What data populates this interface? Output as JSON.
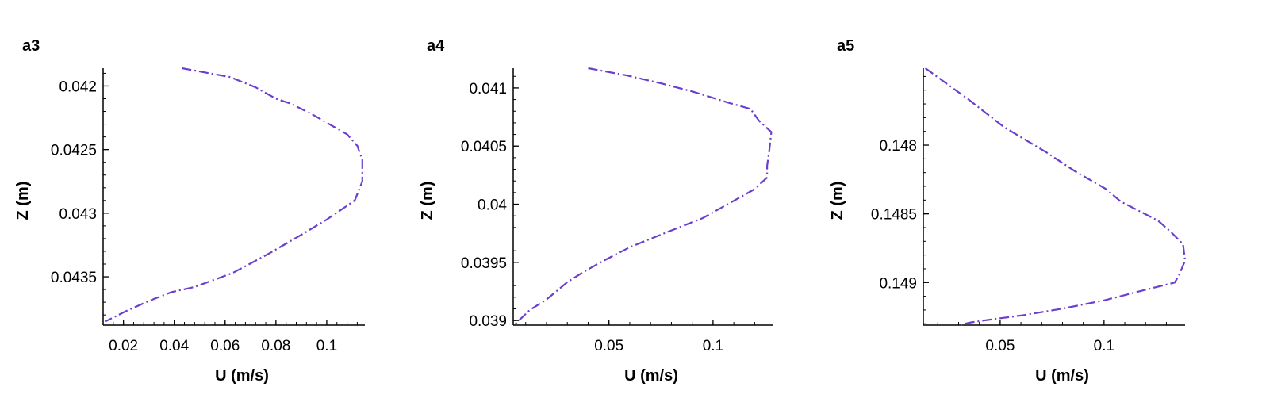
{
  "chart_data": [
    {
      "type": "line",
      "title": "a3",
      "xlabel": "U (m/s)",
      "ylabel": "Z (m)",
      "xlim": [
        0.012,
        0.115
      ],
      "ylim": [
        0.04388,
        0.04186
      ],
      "xticks": [
        0.02,
        0.04,
        0.06,
        0.08,
        0.1
      ],
      "xtick_labels": [
        "0.02",
        "0.04",
        "0.06",
        "0.08",
        "0.1"
      ],
      "yticks": [
        0.042,
        0.0425,
        0.043,
        0.0435
      ],
      "ytick_labels": [
        "0.042",
        "0.0425",
        "0.043",
        "0.0435"
      ],
      "grid": false,
      "series": [
        {
          "color": "#6a3fd0",
          "dash": "dashdot",
          "x": [
            0.043,
            0.062,
            0.072,
            0.08,
            0.086,
            0.094,
            0.101,
            0.108,
            0.112,
            0.114,
            0.114,
            0.111,
            0.1,
            0.09,
            0.077,
            0.063,
            0.048,
            0.039,
            0.03,
            0.021,
            0.013
          ],
          "y": [
            0.04186,
            0.04193,
            0.04201,
            0.0421,
            0.04214,
            0.04222,
            0.0423,
            0.04238,
            0.04247,
            0.04258,
            0.04275,
            0.0429,
            0.04305,
            0.04317,
            0.04332,
            0.04347,
            0.04358,
            0.04362,
            0.04369,
            0.04377,
            0.04385
          ]
        }
      ]
    },
    {
      "type": "line",
      "title": "a4",
      "xlabel": "U (m/s)",
      "ylabel": "Z (m)",
      "xlim": [
        0.004,
        0.129
      ],
      "ylim": [
        0.03896,
        0.04117
      ],
      "xticks": [
        0.05,
        0.1
      ],
      "xtick_labels": [
        "0.05",
        "0.1"
      ],
      "yticks": [
        0.039,
        0.0395,
        0.04,
        0.0405,
        0.041
      ],
      "ytick_labels": [
        "0.039",
        "0.0395",
        "0.04",
        "0.0405",
        "0.041"
      ],
      "grid": false,
      "series": [
        {
          "color": "#6a3fd0",
          "dash": "dashdot",
          "x": [
            0.04,
            0.058,
            0.075,
            0.09,
            0.108,
            0.118,
            0.122,
            0.128,
            0.127,
            0.126,
            0.126,
            0.12,
            0.108,
            0.095,
            0.078,
            0.06,
            0.047,
            0.038,
            0.03,
            0.02,
            0.012,
            0.005
          ],
          "y": [
            0.04117,
            0.04111,
            0.04104,
            0.04097,
            0.04087,
            0.04082,
            0.04072,
            0.04062,
            0.04046,
            0.04033,
            0.04023,
            0.04013,
            0.04001,
            0.03988,
            0.03976,
            0.03963,
            0.03951,
            0.03942,
            0.03933,
            0.03918,
            0.03909,
            0.03897
          ]
        }
      ]
    },
    {
      "type": "line",
      "title": "a5",
      "xlabel": "U (m/s)",
      "ylabel": "Z (m)",
      "xlim": [
        0.013,
        0.139
      ],
      "ylim": [
        0.14931,
        0.14744
      ],
      "xticks": [
        0.05,
        0.1
      ],
      "xtick_labels": [
        "0.05",
        "0.1"
      ],
      "yticks": [
        0.148,
        0.1485,
        0.149
      ],
      "ytick_labels": [
        "0.148",
        "0.1485",
        "0.149"
      ],
      "grid": false,
      "series": [
        {
          "color": "#6a3fd0",
          "dash": "dashdot",
          "x": [
            0.014,
            0.035,
            0.052,
            0.072,
            0.086,
            0.101,
            0.108,
            0.117,
            0.126,
            0.132,
            0.138,
            0.139,
            0.136,
            0.134,
            0.118,
            0.1,
            0.08,
            0.06,
            0.045,
            0.036,
            0.03
          ],
          "y": [
            0.14744,
            0.14767,
            0.14787,
            0.14805,
            0.14819,
            0.14832,
            0.14841,
            0.14848,
            0.14855,
            0.14863,
            0.14872,
            0.14884,
            0.14895,
            0.149,
            0.14906,
            0.14913,
            0.14919,
            0.14924,
            0.14927,
            0.14929,
            0.14931
          ]
        }
      ]
    }
  ]
}
